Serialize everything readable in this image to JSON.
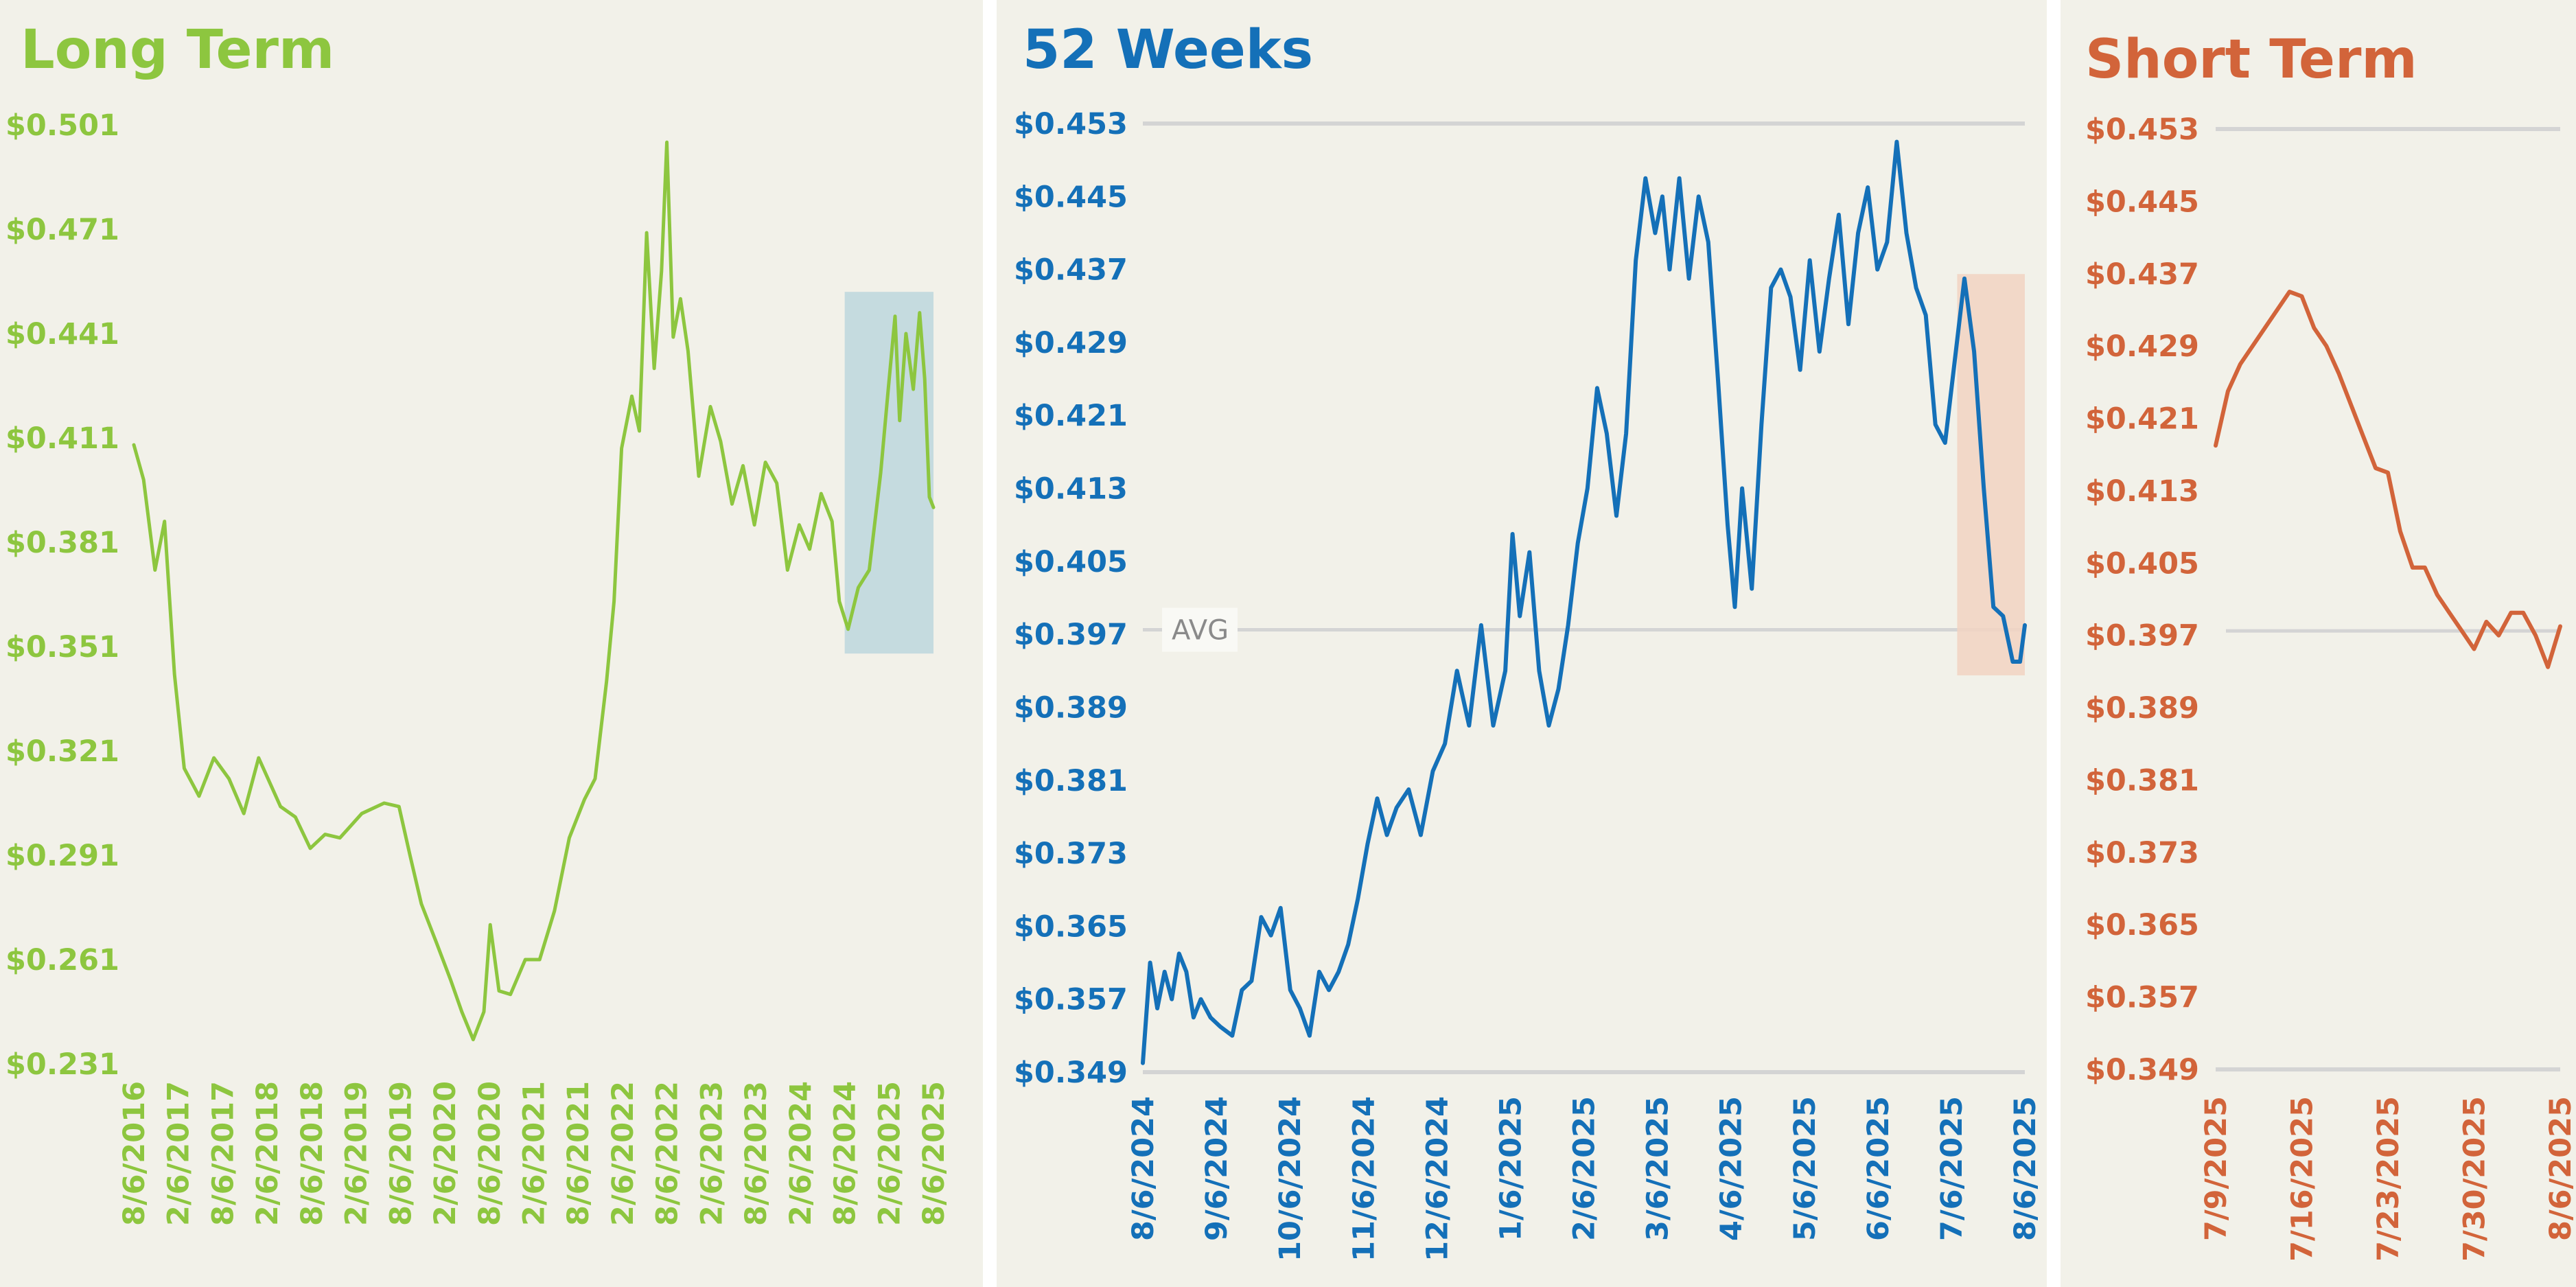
{
  "colors": {
    "background": "#f2f1e9",
    "long_term": "#8dc63f",
    "weeks52": "#1470b8",
    "short_term": "#d2643a",
    "highlight_long": "#bdd7dd",
    "highlight_52": "#f2d3c2",
    "gridline": "#d4d4d4"
  },
  "chart_data": [
    {
      "id": "long",
      "type": "line",
      "title": "Long Term",
      "ylim": [
        0.231,
        0.501
      ],
      "yticks": [
        "$0.501",
        "$0.471",
        "$0.441",
        "$0.411",
        "$0.381",
        "$0.351",
        "$0.321",
        "$0.291",
        "$0.261",
        "$0.231"
      ],
      "xlim": [
        "2016-08-06",
        "2025-08-06"
      ],
      "xticks": [
        "8/6/2016",
        "2/6/2017",
        "8/6/2017",
        "2/6/2018",
        "8/6/2018",
        "2/6/2019",
        "8/6/2019",
        "2/6/2020",
        "8/6/2020",
        "2/6/2021",
        "8/6/2021",
        "2/6/2022",
        "8/6/2022",
        "2/6/2023",
        "8/6/2023",
        "2/6/2024",
        "8/6/2024",
        "2/6/2025",
        "8/6/2025"
      ],
      "highlight": {
        "x": [
          "2024-08-06",
          "2025-08-06"
        ],
        "y": [
          0.349,
          0.453
        ]
      },
      "series": [
        {
          "x": [
            "2016-08-06",
            "2016-09-15",
            "2016-11-01",
            "2016-12-10",
            "2017-01-20",
            "2017-03-01",
            "2017-05-01",
            "2017-07-01",
            "2017-09-01",
            "2017-11-01",
            "2018-01-01",
            "2018-04-01",
            "2018-06-01",
            "2018-08-01",
            "2018-10-01",
            "2018-12-01",
            "2019-03-01",
            "2019-06-01",
            "2019-08-01",
            "2019-09-15",
            "2019-11-01",
            "2020-01-01",
            "2020-03-01",
            "2020-04-15",
            "2020-06-01",
            "2020-07-15",
            "2020-08-10",
            "2020-09-15",
            "2020-11-01",
            "2021-01-01",
            "2021-03-01",
            "2021-05-01",
            "2021-07-01",
            "2021-09-01",
            "2021-10-15",
            "2021-12-01",
            "2022-01-01",
            "2022-02-01",
            "2022-03-15",
            "2022-04-15",
            "2022-05-15",
            "2022-06-15",
            "2022-07-15",
            "2022-08-06",
            "2022-09-01",
            "2022-10-01",
            "2022-11-01",
            "2022-12-15",
            "2023-02-01",
            "2023-03-15",
            "2023-05-01",
            "2023-06-15",
            "2023-08-01",
            "2023-09-15",
            "2023-11-01",
            "2023-12-15",
            "2024-02-01",
            "2024-03-15",
            "2024-05-01",
            "2024-06-15",
            "2024-07-15",
            "2024-08-20",
            "2024-10-01",
            "2024-11-15",
            "2025-01-01",
            "2025-02-01",
            "2025-03-01",
            "2025-03-20",
            "2025-04-15",
            "2025-05-15",
            "2025-06-10",
            "2025-07-01",
            "2025-07-20",
            "2025-08-06"
          ],
          "y": [
            0.409,
            0.399,
            0.373,
            0.387,
            0.343,
            0.316,
            0.308,
            0.319,
            0.313,
            0.303,
            0.319,
            0.305,
            0.302,
            0.293,
            0.297,
            0.296,
            0.303,
            0.306,
            0.305,
            0.291,
            0.277,
            0.266,
            0.255,
            0.246,
            0.238,
            0.246,
            0.271,
            0.252,
            0.251,
            0.261,
            0.261,
            0.275,
            0.296,
            0.307,
            0.313,
            0.341,
            0.364,
            0.408,
            0.423,
            0.413,
            0.47,
            0.431,
            0.459,
            0.496,
            0.44,
            0.451,
            0.436,
            0.4,
            0.42,
            0.41,
            0.392,
            0.403,
            0.386,
            0.404,
            0.398,
            0.373,
            0.386,
            0.379,
            0.395,
            0.387,
            0.364,
            0.356,
            0.368,
            0.373,
            0.401,
            0.425,
            0.446,
            0.416,
            0.441,
            0.425,
            0.447,
            0.428,
            0.394,
            0.391
          ]
        }
      ]
    },
    {
      "id": "weeks52",
      "type": "line",
      "title": "52 Weeks",
      "ylim": [
        0.349,
        0.453
      ],
      "yticks": [
        "$0.453",
        "$0.445",
        "$0.437",
        "$0.429",
        "$0.421",
        "$0.413",
        "$0.405",
        "$0.397",
        "$0.389",
        "$0.381",
        "$0.373",
        "$0.365",
        "$0.357",
        "$0.349"
      ],
      "xlim": [
        "2024-08-06",
        "2025-08-06"
      ],
      "xticks": [
        "8/6/2024",
        "9/6/2024",
        "10/6/2024",
        "11/6/2024",
        "12/6/2024",
        "1/6/2025",
        "2/6/2025",
        "3/6/2025",
        "4/6/2025",
        "5/6/2025",
        "6/6/2025",
        "7/6/2025",
        "8/6/2025"
      ],
      "avg": {
        "label": "AVG",
        "value": 0.3975
      },
      "highlight": {
        "x": [
          "2025-07-09",
          "2025-08-06"
        ],
        "y": [
          0.3925,
          0.4365
        ]
      },
      "series": [
        {
          "x": [
            "2024-08-06",
            "2024-08-09",
            "2024-08-12",
            "2024-08-15",
            "2024-08-18",
            "2024-08-21",
            "2024-08-24",
            "2024-08-27",
            "2024-08-30",
            "2024-09-03",
            "2024-09-07",
            "2024-09-12",
            "2024-09-16",
            "2024-09-20",
            "2024-09-24",
            "2024-09-28",
            "2024-10-02",
            "2024-10-06",
            "2024-10-10",
            "2024-10-14",
            "2024-10-18",
            "2024-10-22",
            "2024-10-26",
            "2024-10-30",
            "2024-11-03",
            "2024-11-07",
            "2024-11-11",
            "2024-11-15",
            "2024-11-19",
            "2024-11-24",
            "2024-11-29",
            "2024-12-04",
            "2024-12-09",
            "2024-12-14",
            "2024-12-19",
            "2024-12-24",
            "2024-12-29",
            "2025-01-03",
            "2025-01-06",
            "2025-01-09",
            "2025-01-13",
            "2025-01-17",
            "2025-01-21",
            "2025-01-25",
            "2025-01-29",
            "2025-02-02",
            "2025-02-06",
            "2025-02-10",
            "2025-02-14",
            "2025-02-18",
            "2025-02-22",
            "2025-02-26",
            "2025-03-02",
            "2025-03-06",
            "2025-03-09",
            "2025-03-12",
            "2025-03-16",
            "2025-03-20",
            "2025-03-24",
            "2025-03-28",
            "2025-04-01",
            "2025-04-05",
            "2025-04-08",
            "2025-04-11",
            "2025-04-15",
            "2025-04-19",
            "2025-04-23",
            "2025-04-27",
            "2025-05-01",
            "2025-05-05",
            "2025-05-09",
            "2025-05-13",
            "2025-05-17",
            "2025-05-21",
            "2025-05-25",
            "2025-05-29",
            "2025-06-02",
            "2025-06-06",
            "2025-06-10",
            "2025-06-14",
            "2025-06-18",
            "2025-06-22",
            "2025-06-26",
            "2025-06-30",
            "2025-07-04",
            "2025-07-08",
            "2025-07-12",
            "2025-07-16",
            "2025-07-20",
            "2025-07-24",
            "2025-07-28",
            "2025-08-01",
            "2025-08-04",
            "2025-08-06"
          ],
          "y": [
            0.35,
            0.361,
            0.356,
            0.36,
            0.357,
            0.362,
            0.36,
            0.355,
            0.357,
            0.355,
            0.354,
            0.353,
            0.358,
            0.359,
            0.366,
            0.364,
            0.367,
            0.358,
            0.356,
            0.353,
            0.36,
            0.358,
            0.36,
            0.363,
            0.368,
            0.374,
            0.379,
            0.375,
            0.378,
            0.38,
            0.375,
            0.382,
            0.385,
            0.393,
            0.387,
            0.398,
            0.387,
            0.393,
            0.408,
            0.399,
            0.406,
            0.393,
            0.387,
            0.391,
            0.398,
            0.407,
            0.413,
            0.424,
            0.419,
            0.41,
            0.419,
            0.438,
            0.447,
            0.441,
            0.445,
            0.437,
            0.447,
            0.436,
            0.445,
            0.44,
            0.425,
            0.409,
            0.4,
            0.413,
            0.402,
            0.42,
            0.435,
            0.437,
            0.434,
            0.426,
            0.438,
            0.428,
            0.436,
            0.443,
            0.431,
            0.441,
            0.446,
            0.437,
            0.44,
            0.451,
            0.441,
            0.435,
            0.432,
            0.42,
            0.418,
            0.427,
            0.436,
            0.428,
            0.413,
            0.4,
            0.399,
            0.394,
            0.394,
            0.398
          ]
        }
      ]
    },
    {
      "id": "short",
      "type": "line",
      "title": "Short Term",
      "ylim": [
        0.349,
        0.453
      ],
      "yticks": [
        "$0.453",
        "$0.445",
        "$0.437",
        "$0.429",
        "$0.421",
        "$0.413",
        "$0.405",
        "$0.397",
        "$0.389",
        "$0.381",
        "$0.373",
        "$0.365",
        "$0.357",
        "$0.349"
      ],
      "xlim": [
        "2025-07-09",
        "2025-08-06"
      ],
      "xticks": [
        "7/9/2025",
        "7/16/2025",
        "7/23/2025",
        "7/30/2025",
        "8/6/2025"
      ],
      "avg": {
        "value": 0.3975
      },
      "series": [
        {
          "x": [
            "2025-07-09",
            "2025-07-10",
            "2025-07-11",
            "2025-07-13",
            "2025-07-15",
            "2025-07-16",
            "2025-07-17",
            "2025-07-18",
            "2025-07-19",
            "2025-07-20",
            "2025-07-21",
            "2025-07-22",
            "2025-07-23",
            "2025-07-24",
            "2025-07-25",
            "2025-07-26",
            "2025-07-27",
            "2025-07-28",
            "2025-07-29",
            "2025-07-30",
            "2025-07-31",
            "2025-08-01",
            "2025-08-02",
            "2025-08-03",
            "2025-08-04",
            "2025-08-05",
            "2025-08-06"
          ],
          "y": [
            0.418,
            0.424,
            0.427,
            0.431,
            0.435,
            0.4345,
            0.431,
            0.429,
            0.426,
            0.4225,
            0.419,
            0.4155,
            0.415,
            0.4085,
            0.4045,
            0.4045,
            0.4015,
            0.3995,
            0.3975,
            0.3955,
            0.3985,
            0.397,
            0.3995,
            0.3995,
            0.397,
            0.3935,
            0.398
          ]
        }
      ]
    }
  ]
}
